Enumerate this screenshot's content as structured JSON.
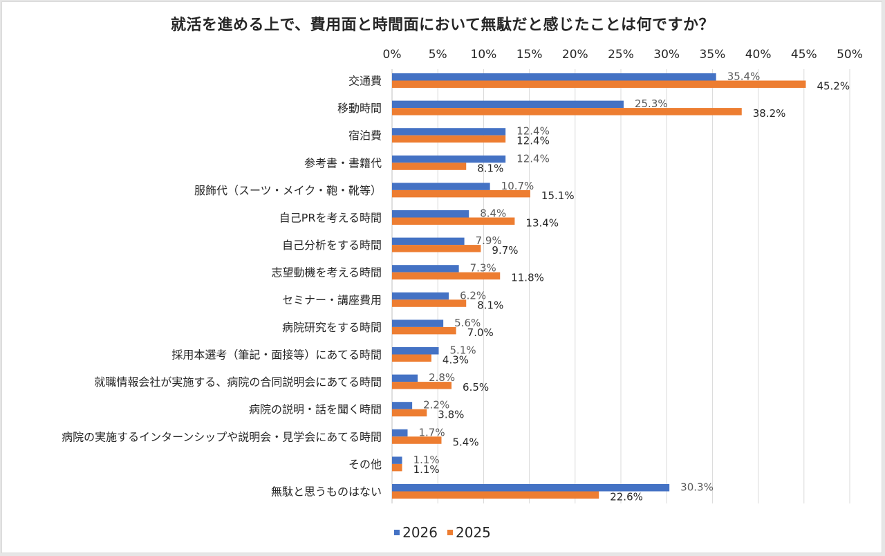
{
  "chart_data": {
    "type": "bar",
    "orientation": "horizontal",
    "title": "就活を進める上で、費用面と時間面において無駄だと感じたことは何ですか？",
    "xlabel": "",
    "ylabel": "",
    "xlim": [
      0,
      50
    ],
    "x_ticks": [
      "0%",
      "5%",
      "10%",
      "15%",
      "20%",
      "25%",
      "30%",
      "35%",
      "40%",
      "45%",
      "50%"
    ],
    "x_tick_values": [
      0,
      5,
      10,
      15,
      20,
      25,
      30,
      35,
      40,
      45,
      50
    ],
    "x_axis_position": "top",
    "grid": true,
    "legend_position": "bottom",
    "categories": [
      "交通費",
      "移動時間",
      "宿泊費",
      "参考書・書籍代",
      "服飾代（スーツ・メイク・鞄・靴等）",
      "自己PRを考える時間",
      "自己分析をする時間",
      "志望動機を考える時間",
      "セミナー・講座費用",
      "病院研究をする時間",
      "採用本選考（筆記・面接等）にあてる時間",
      "就職情報会社が実施する、病院の合同説明会にあてる時間",
      "病院の説明・話を聞く時間",
      "病院の実施するインターンシップや説明会・見学会にあてる時間",
      "その他",
      "無駄と思うものはない"
    ],
    "series": [
      {
        "name": "2026",
        "color": "#4472c4",
        "values": [
          35.4,
          25.3,
          12.4,
          12.4,
          10.7,
          8.4,
          7.9,
          7.3,
          6.2,
          5.6,
          5.1,
          2.8,
          2.2,
          1.7,
          1.1,
          30.3
        ],
        "labels": [
          "35.4%",
          "25.3%",
          "12.4%",
          "12.4%",
          "10.7%",
          "8.4%",
          "7.9%",
          "7.3%",
          "6.2%",
          "5.6%",
          "5.1%",
          "2.8%",
          "2.2%",
          "1.7%",
          "1.1%",
          "30.3%"
        ]
      },
      {
        "name": "2025",
        "color": "#ed7d31",
        "values": [
          45.2,
          38.2,
          12.4,
          8.1,
          15.1,
          13.4,
          9.7,
          11.8,
          8.1,
          7.0,
          4.3,
          6.5,
          3.8,
          5.4,
          1.1,
          22.6
        ],
        "labels": [
          "45.2%",
          "38.2%",
          "12.4%",
          "8.1%",
          "15.1%",
          "13.4%",
          "9.7%",
          "11.8%",
          "8.1%",
          "7.0%",
          "4.3%",
          "6.5%",
          "3.8%",
          "5.4%",
          "1.1%",
          "22.6%"
        ]
      }
    ]
  },
  "legend": {
    "items": [
      {
        "label": "2026",
        "color": "#4472c4"
      },
      {
        "label": "2025",
        "color": "#ed7d31"
      }
    ]
  }
}
